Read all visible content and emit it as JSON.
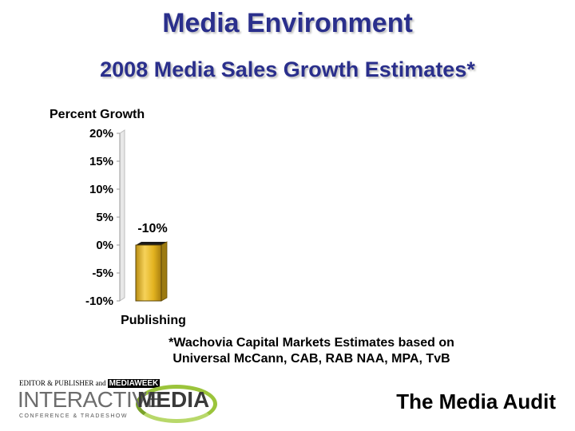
{
  "header": {
    "title": "Media Environment",
    "subtitle": "2008 Media Sales Growth Estimates*"
  },
  "chart_data": {
    "type": "bar",
    "ylabel": "Percent Growth",
    "xlabel": "",
    "ylim": [
      -10,
      20
    ],
    "yticks": [
      20,
      15,
      10,
      5,
      0,
      -5,
      -10
    ],
    "ytick_labels": [
      "20%",
      "15%",
      "10%",
      "5%",
      "0%",
      "-5%",
      "-10%"
    ],
    "categories": [
      "Publishing"
    ],
    "values": [
      -10
    ],
    "data_labels": [
      "-10%"
    ],
    "bar_color": "#e2b21f",
    "grid": false
  },
  "footnote": {
    "line1": "*Wachovia Capital Markets Estimates based on",
    "line2": "Universal McCann, CAB, RAB NAA, MPA, TvB"
  },
  "logo": {
    "top_text": "EDITOR & PUBLISHER and",
    "top_brand": "MEDIAWEEK",
    "word1": "INTERACTIVE",
    "word2": "MEDIA",
    "bottom_text": "CONFERENCE & TRADESHOW"
  },
  "brand": {
    "name": "The Media Audit"
  }
}
